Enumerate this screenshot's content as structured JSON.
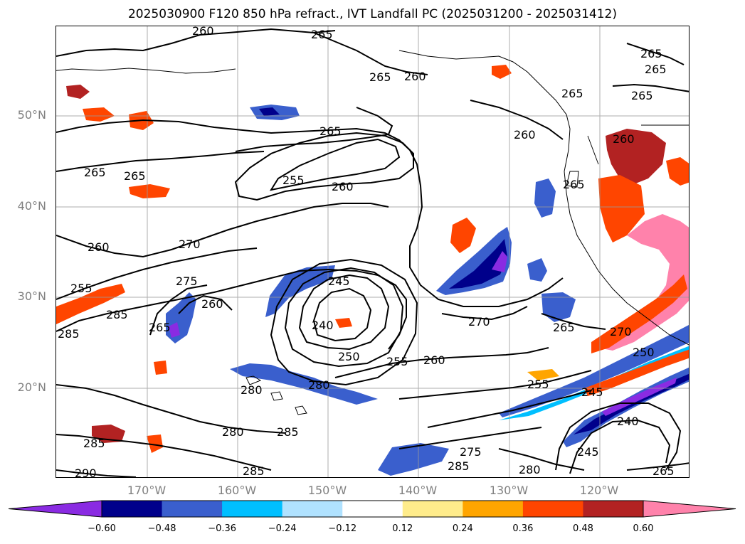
{
  "title": "2025030900 F120 850 hPa refract., IVT Landfall PC (2025031200 - 2025031412)",
  "lat_labels": [
    "50°N",
    "40°N",
    "30°N",
    "20°N"
  ],
  "lon_labels": [
    "170°W",
    "160°W",
    "150°W",
    "140°W",
    "130°W",
    "120°W"
  ],
  "colorbar": {
    "ticks": [
      "−0.60",
      "−0.48",
      "−0.36",
      "−0.24",
      "−0.12",
      "0.12",
      "0.24",
      "0.36",
      "0.48",
      "0.60"
    ],
    "colors": [
      "#8a2be2",
      "#00008b",
      "#3a5fcd",
      "#00bfff",
      "#b0e2ff",
      "#ffffff",
      "#ffec8b",
      "#ffa500",
      "#ff4500",
      "#b22222",
      "#ff82ab"
    ]
  },
  "contour_labels": [
    "260",
    "265",
    "265",
    "265",
    "260",
    "265",
    "265",
    "265",
    "265",
    "260",
    "265",
    "265",
    "255",
    "260",
    "260",
    "265",
    "270",
    "260",
    "255",
    "275",
    "260",
    "285",
    "265",
    "285",
    "245",
    "240",
    "270",
    "265",
    "270",
    "250",
    "255",
    "260",
    "255",
    "245",
    "240",
    "280",
    "280",
    "280",
    "285",
    "285",
    "275",
    "280",
    "245",
    "290",
    "285",
    "250",
    "265",
    "285"
  ]
}
